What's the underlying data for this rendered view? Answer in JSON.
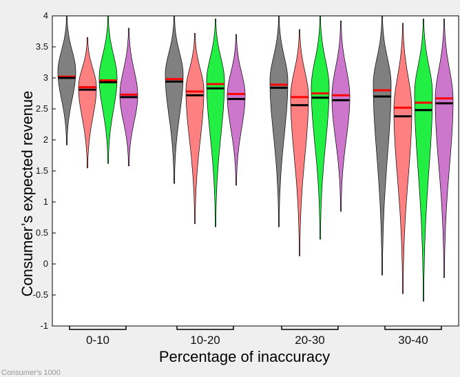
{
  "footer_text": "Consumer's 1000",
  "chart_data": {
    "type": "violin",
    "title": "",
    "xlabel": "Percentage of inaccuracy",
    "ylabel": "Consumer’s expected revenue",
    "ylim": [
      -1,
      4
    ],
    "yticks": [
      -1,
      -0.5,
      0,
      0.5,
      1,
      1.5,
      2,
      2.5,
      3,
      3.5,
      4
    ],
    "grid": false,
    "legend": "none",
    "categories": [
      "0-10",
      "10-20",
      "20-30",
      "30-40"
    ],
    "mean_color": "#ff0000",
    "median_color": "#000000",
    "series": [
      {
        "color": "#808080",
        "min": [
          1.92,
          1.3,
          0.6,
          -0.18
        ],
        "max": [
          4.0,
          4.0,
          4.0,
          4.0
        ],
        "mean": [
          3.02,
          2.98,
          2.89,
          2.8
        ],
        "median": [
          3.0,
          2.94,
          2.84,
          2.7
        ],
        "mode": [
          3.1,
          3.05,
          2.95,
          2.9
        ]
      },
      {
        "color": "#ff8080",
        "min": [
          1.55,
          0.65,
          0.13,
          -0.48
        ],
        "max": [
          3.65,
          3.72,
          3.78,
          3.88
        ],
        "mean": [
          2.85,
          2.78,
          2.69,
          2.52
        ],
        "median": [
          2.81,
          2.72,
          2.56,
          2.38
        ],
        "mode": [
          2.85,
          2.8,
          2.7,
          2.5
        ]
      },
      {
        "color": "#22ee44",
        "min": [
          1.62,
          0.6,
          0.4,
          -0.6
        ],
        "max": [
          4.0,
          3.95,
          4.0,
          3.95
        ],
        "mean": [
          2.96,
          2.9,
          2.75,
          2.6
        ],
        "median": [
          2.93,
          2.83,
          2.68,
          2.48
        ],
        "mode": [
          3.0,
          2.95,
          2.85,
          2.75
        ]
      },
      {
        "color": "#cc77cc",
        "min": [
          1.58,
          1.27,
          0.85,
          -0.22
        ],
        "max": [
          3.8,
          3.7,
          3.92,
          3.95
        ],
        "mean": [
          2.73,
          2.74,
          2.72,
          2.67
        ],
        "median": [
          2.69,
          2.66,
          2.64,
          2.59
        ],
        "mode": [
          2.72,
          2.72,
          2.7,
          2.65
        ]
      }
    ]
  }
}
